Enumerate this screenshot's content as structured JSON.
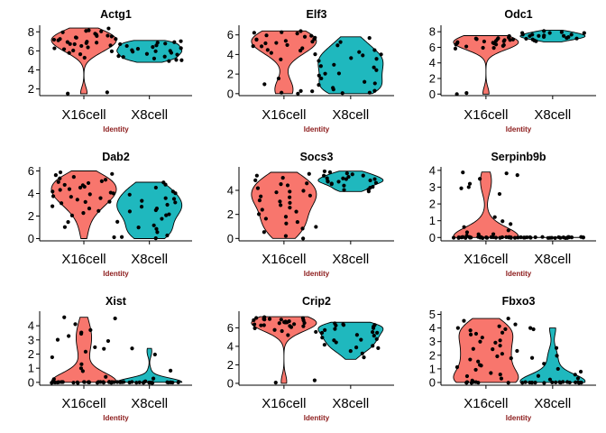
{
  "colors": {
    "X16cell": "#f8766d",
    "X8cell": "#1fb8be",
    "point": "#000000",
    "xlabel": "#8b1a1a"
  },
  "chart_data": [
    {
      "type": "violin",
      "title": "Actg1",
      "xlabel": "Identity",
      "ylabel": "",
      "categories": [
        "X16cell",
        "X8cell"
      ],
      "ylim": [
        1.3,
        8.5
      ],
      "yticks": [
        2,
        4,
        6,
        8
      ],
      "series": [
        {
          "name": "X16cell",
          "min": 1.5,
          "max": 8.4,
          "values": [
            8.1,
            8.3,
            7.9,
            7.6,
            7.4,
            7.2,
            7.0,
            6.9,
            6.8,
            6.7,
            7.5,
            7.8,
            6.6,
            6.4,
            6.2,
            6.0,
            5.9,
            5.8,
            7.1,
            7.3,
            7.7,
            8.0,
            6.5,
            6.3,
            5.7,
            5.3,
            7.6,
            7.4,
            6.9,
            8.2,
            1.6,
            1.5,
            7.2,
            6.7
          ]
        },
        {
          "name": "X8cell",
          "min": 4.8,
          "max": 7.1,
          "values": [
            7.0,
            6.9,
            6.8,
            6.7,
            6.5,
            6.3,
            6.1,
            6.0,
            5.9,
            5.7,
            5.5,
            5.3,
            5.1,
            4.9,
            6.6,
            6.4,
            6.2,
            5.8,
            5.6,
            5.2,
            6.9,
            6.0,
            5.4,
            5.0
          ]
        }
      ]
    },
    {
      "type": "violin",
      "title": "Elf3",
      "xlabel": "Identity",
      "ylabel": "",
      "categories": [
        "X16cell",
        "X8cell"
      ],
      "ylim": [
        -0.2,
        6.8
      ],
      "yticks": [
        0,
        2,
        4,
        6
      ],
      "series": [
        {
          "name": "X16cell",
          "min": 0.0,
          "max": 6.4,
          "values": [
            6.4,
            6.2,
            6.0,
            5.8,
            5.6,
            5.5,
            5.3,
            5.1,
            5.0,
            4.8,
            4.6,
            4.4,
            4.2,
            6.1,
            5.7,
            5.4,
            5.2,
            4.9,
            4.5,
            4.0,
            3.5,
            6.3,
            5.9,
            0.1,
            0.3,
            0.0,
            1.5,
            1.0,
            0.2,
            5.5
          ]
        },
        {
          "name": "X8cell",
          "min": 0.0,
          "max": 5.8,
          "values": [
            5.7,
            5.3,
            4.9,
            4.5,
            4.2,
            3.9,
            3.6,
            3.3,
            3.0,
            2.7,
            2.4,
            2.1,
            1.8,
            1.5,
            1.2,
            0.9,
            0.6,
            0.3,
            0.1,
            0.0,
            4.0,
            3.5,
            2.8,
            2.0,
            1.0,
            0.4
          ]
        }
      ]
    },
    {
      "type": "violin",
      "title": "Odc1",
      "xlabel": "Identity",
      "ylabel": "",
      "categories": [
        "X16cell",
        "X8cell"
      ],
      "ylim": [
        -0.2,
        8.6
      ],
      "yticks": [
        0,
        2,
        4,
        6,
        8
      ],
      "series": [
        {
          "name": "X16cell",
          "min": 0.0,
          "max": 7.5,
          "values": [
            7.4,
            7.2,
            7.1,
            7.0,
            6.9,
            6.8,
            6.7,
            6.6,
            6.5,
            6.4,
            6.3,
            6.2,
            6.1,
            6.0,
            5.9,
            5.8,
            7.3,
            6.9,
            6.6,
            6.3,
            7.1,
            6.8,
            0.1,
            0.0,
            7.0,
            6.5
          ]
        },
        {
          "name": "X8cell",
          "min": 6.7,
          "max": 8.2,
          "values": [
            8.1,
            8.0,
            7.9,
            7.8,
            7.7,
            7.6,
            7.5,
            7.4,
            7.3,
            7.2,
            7.1,
            7.0,
            6.9,
            6.8,
            7.6,
            7.4,
            7.2,
            7.9,
            7.5,
            7.3
          ]
        }
      ]
    },
    {
      "type": "violin",
      "title": "Dab2",
      "xlabel": "Identity",
      "ylabel": "",
      "categories": [
        "X16cell",
        "X8cell"
      ],
      "ylim": [
        -0.2,
        6.2
      ],
      "yticks": [
        0,
        2,
        4,
        6
      ],
      "series": [
        {
          "name": "X16cell",
          "min": 0.0,
          "max": 6.0,
          "values": [
            5.9,
            5.7,
            5.5,
            5.3,
            5.1,
            4.9,
            4.7,
            4.5,
            4.3,
            4.1,
            3.9,
            3.7,
            3.5,
            3.3,
            3.1,
            2.9,
            2.7,
            2.5,
            2.3,
            2.0,
            1.5,
            1.0,
            0.1,
            5.6,
            5.2,
            4.8,
            4.4,
            4.0,
            3.6,
            3.2,
            4.6,
            5.0,
            4.2,
            3.8
          ]
        },
        {
          "name": "X8cell",
          "min": 0.0,
          "max": 5.0,
          "values": [
            5.0,
            4.8,
            4.5,
            4.2,
            3.9,
            3.6,
            3.3,
            3.0,
            2.7,
            2.4,
            2.1,
            1.8,
            1.5,
            1.2,
            0.9,
            0.6,
            0.3,
            0.1,
            0.0,
            4.0,
            3.5,
            3.2,
            2.8,
            2.5,
            2.2,
            1.0
          ]
        }
      ]
    },
    {
      "type": "violin",
      "title": "Socs3",
      "xlabel": "Identity",
      "ylabel": "",
      "categories": [
        "X16cell",
        "X8cell"
      ],
      "ylim": [
        -0.2,
        5.8
      ],
      "yticks": [
        0,
        2,
        4
      ],
      "series": [
        {
          "name": "X16cell",
          "min": 0.0,
          "max": 5.5,
          "values": [
            5.4,
            5.2,
            5.0,
            4.8,
            4.6,
            4.4,
            4.2,
            4.0,
            3.8,
            3.6,
            3.4,
            3.2,
            3.0,
            2.8,
            2.6,
            2.4,
            2.2,
            2.0,
            1.8,
            1.6,
            1.4,
            1.2,
            1.0,
            0.8,
            0.5,
            0.2,
            0.0,
            3.9,
            3.5,
            3.1,
            4.5
          ]
        },
        {
          "name": "X8cell",
          "min": 3.9,
          "max": 5.6,
          "values": [
            5.6,
            5.5,
            5.4,
            5.3,
            5.2,
            5.1,
            5.0,
            4.9,
            4.8,
            4.7,
            4.6,
            4.5,
            4.4,
            4.3,
            4.2,
            4.1,
            4.0,
            3.9,
            5.2,
            4.9,
            4.6,
            4.8,
            5.0,
            4.7
          ]
        }
      ]
    },
    {
      "type": "violin",
      "title": "Serpinb9b",
      "xlabel": "Identity",
      "ylabel": "",
      "categories": [
        "X16cell",
        "X8cell"
      ],
      "ylim": [
        -0.2,
        4.1
      ],
      "yticks": [
        0,
        1,
        2,
        3,
        4
      ],
      "series": [
        {
          "name": "X16cell",
          "min": 0.0,
          "max": 3.9,
          "values": [
            0,
            0,
            0,
            0,
            0,
            0,
            0,
            0,
            0,
            0,
            0,
            0,
            0,
            0,
            0,
            0,
            0,
            0,
            0,
            0,
            0,
            0,
            0,
            0,
            0,
            0,
            0,
            0,
            0.1,
            0.1,
            0.2,
            0.2,
            0.3,
            1.0,
            1.2,
            0.8,
            3.8,
            3.5,
            3.2,
            3.0,
            2.9,
            2.6,
            0.6,
            0.4,
            3.9,
            3.7
          ]
        },
        {
          "name": "X8cell",
          "min": 0.0,
          "max": 0.0,
          "values": [
            0,
            0,
            0,
            0,
            0,
            0,
            0,
            0,
            0,
            0,
            0,
            0,
            0,
            0,
            0,
            0,
            0,
            0,
            0,
            0,
            0,
            0,
            0,
            0
          ]
        }
      ]
    },
    {
      "type": "violin",
      "title": "Xist",
      "xlabel": "Identity",
      "ylabel": "",
      "categories": [
        "X16cell",
        "X8cell"
      ],
      "ylim": [
        -0.2,
        4.9
      ],
      "yticks": [
        0,
        1,
        2,
        3,
        4
      ],
      "series": [
        {
          "name": "X16cell",
          "min": 0.0,
          "max": 4.6,
          "values": [
            0,
            0,
            0,
            0,
            0,
            0,
            0,
            0,
            0,
            0,
            0,
            0,
            0,
            0,
            0,
            0,
            0,
            0,
            0,
            0,
            0,
            0,
            0,
            0,
            0,
            0,
            0,
            0,
            0.2,
            0.4,
            0.8,
            1.0,
            1.3,
            1.8,
            2.2,
            2.4,
            2.5,
            3.0,
            3.3,
            3.5,
            3.7,
            4.1,
            4.5,
            4.6,
            2.9,
            3.4
          ]
        },
        {
          "name": "X8cell",
          "min": 0.0,
          "max": 2.4,
          "values": [
            0,
            0,
            0,
            0,
            0,
            0,
            0,
            0,
            0,
            0,
            0,
            0,
            0,
            0,
            0,
            0,
            0,
            0,
            0,
            0,
            0.3,
            0.8,
            2.0,
            2.4,
            0.1
          ]
        }
      ]
    },
    {
      "type": "violin",
      "title": "Crip2",
      "xlabel": "Identity",
      "ylabel": "",
      "categories": [
        "X16cell",
        "X8cell"
      ],
      "ylim": [
        -0.2,
        7.6
      ],
      "yticks": [
        0,
        2,
        4,
        6
      ],
      "series": [
        {
          "name": "X16cell",
          "min": 0.0,
          "max": 7.2,
          "values": [
            7.1,
            7.0,
            6.9,
            6.8,
            6.7,
            6.6,
            6.5,
            6.4,
            6.3,
            6.2,
            6.1,
            6.0,
            5.8,
            5.6,
            7.2,
            6.9,
            6.7,
            6.5,
            6.3,
            6.6,
            6.8,
            7.0,
            6.4,
            6.2,
            5.5,
            5.2,
            0.3,
            0.1,
            6.9,
            6.6
          ]
        },
        {
          "name": "X8cell",
          "min": 2.6,
          "max": 6.6,
          "values": [
            6.5,
            6.4,
            6.3,
            6.2,
            6.0,
            5.8,
            5.6,
            5.4,
            5.2,
            5.0,
            4.8,
            4.6,
            4.4,
            4.2,
            4.0,
            3.8,
            3.5,
            3.2,
            2.8,
            6.1,
            5.9,
            5.5,
            5.1,
            4.7,
            6.3,
            3.9
          ]
        }
      ]
    },
    {
      "type": "violin",
      "title": "Fbxo3",
      "xlabel": "Identity",
      "ylabel": "",
      "categories": [
        "X16cell",
        "X8cell"
      ],
      "ylim": [
        -0.2,
        5.1
      ],
      "yticks": [
        0,
        1,
        2,
        3,
        4,
        5
      ],
      "series": [
        {
          "name": "X16cell",
          "min": 0.0,
          "max": 4.7,
          "values": [
            4.7,
            4.5,
            4.3,
            4.1,
            3.9,
            3.7,
            3.5,
            3.3,
            3.1,
            2.9,
            2.7,
            2.5,
            2.3,
            2.1,
            1.9,
            1.7,
            1.5,
            1.3,
            1.1,
            0.9,
            0.7,
            0.5,
            0.3,
            0.1,
            0,
            0,
            0,
            0,
            0,
            0,
            0,
            0,
            4.0,
            3.6,
            3.0,
            2.4,
            1.8,
            1.2,
            0.6,
            3.8
          ]
        },
        {
          "name": "X8cell",
          "min": 0.0,
          "max": 4.0,
          "values": [
            0,
            0,
            0,
            0,
            0,
            0,
            0,
            0,
            0,
            0,
            0,
            0,
            0,
            0,
            0,
            0,
            0,
            0,
            0.2,
            0.3,
            0.5,
            0.8,
            1.0,
            1.4,
            2.0,
            2.5,
            4.0,
            3.9,
            1.8,
            0.6
          ]
        }
      ]
    }
  ]
}
